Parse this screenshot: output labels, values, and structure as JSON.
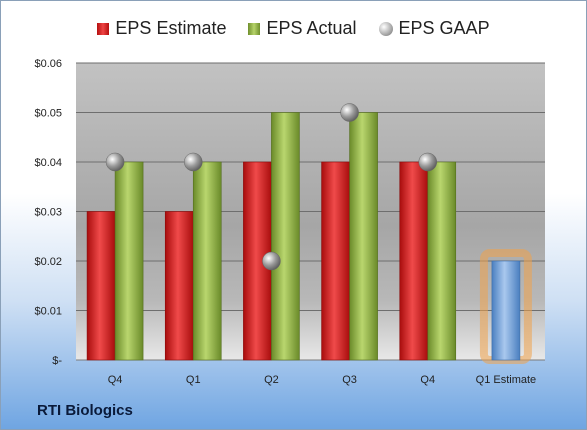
{
  "chart_data": {
    "type": "bar",
    "categories": [
      "Q4",
      "Q1",
      "Q2",
      "Q3",
      "Q4",
      "Q1 Estimate"
    ],
    "series": [
      {
        "name": "EPS Estimate",
        "values": [
          0.03,
          0.03,
          0.04,
          0.04,
          0.04,
          null
        ],
        "color": "#d62a2a"
      },
      {
        "name": "EPS Actual",
        "values": [
          0.04,
          0.04,
          0.05,
          0.05,
          0.04,
          null
        ],
        "color": "#9bbb59"
      },
      {
        "name": "EPS GAAP",
        "values": [
          0.04,
          0.04,
          0.02,
          0.05,
          0.04,
          null
        ],
        "style": "marker",
        "color": "#a6a6a6"
      },
      {
        "name": "Q1 Estimate",
        "values": [
          null,
          null,
          null,
          null,
          null,
          0.02
        ],
        "color": "#6f9fd8"
      }
    ],
    "ylim": [
      0,
      0.06
    ],
    "yticks": [
      0,
      0.01,
      0.02,
      0.03,
      0.04,
      0.05,
      0.06
    ],
    "ytick_labels": [
      "$-",
      "$0.01",
      "$0.02",
      "$0.03",
      "$0.04",
      "$0.05",
      "$0.06"
    ],
    "legend": [
      "EPS Estimate",
      "EPS Actual",
      "EPS GAAP"
    ],
    "legend_position": "top-center",
    "grid": true
  },
  "company_name": "RTI Biologics"
}
